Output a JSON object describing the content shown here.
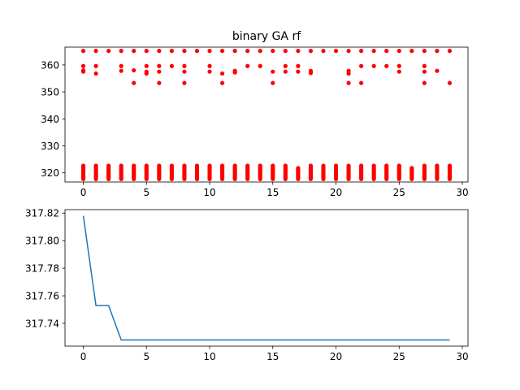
{
  "chart_data": [
    {
      "type": "scatter",
      "title": "binary GA rf",
      "xlabel": "",
      "ylabel": "",
      "xlim": [
        -1.45,
        30.45
      ],
      "ylim": [
        316.6,
        366.6
      ],
      "xticks": [
        0,
        5,
        10,
        15,
        20,
        25,
        30
      ],
      "yticks": [
        320,
        330,
        340,
        350,
        360
      ],
      "grid": false,
      "marker_color": "#ff0000",
      "x_range": [
        0,
        29
      ],
      "high_values": [
        365.2,
        359.6,
        358.0,
        357.5,
        356.8,
        353.3
      ],
      "low_range": [
        317.7,
        322.8
      ],
      "series": [
        {
          "x": [
            0,
            0,
            0,
            0,
            1,
            1,
            1,
            2,
            3,
            3,
            3,
            4,
            4,
            4,
            5,
            5,
            5,
            5,
            6,
            6,
            6,
            6,
            7,
            7,
            8,
            8,
            8,
            8,
            9,
            10,
            10,
            10,
            11,
            11,
            11,
            12,
            12,
            12,
            13,
            13,
            14,
            14,
            15,
            15,
            15,
            16,
            16,
            16,
            17,
            17,
            17,
            18,
            18,
            18,
            19,
            20,
            21,
            21,
            21,
            21,
            22,
            22,
            22,
            23,
            23,
            24,
            24,
            25,
            25,
            25,
            26,
            27,
            27,
            27,
            27,
            28,
            28,
            29,
            29
          ],
          "y": [
            365.2,
            359.6,
            358.0,
            357.5,
            365.2,
            359.6,
            356.8,
            365.2,
            365.2,
            359.6,
            357.8,
            365.2,
            358.0,
            353.3,
            365.2,
            359.6,
            357.5,
            356.8,
            365.2,
            359.6,
            357.5,
            353.3,
            365.2,
            359.6,
            365.2,
            359.6,
            357.5,
            353.3,
            365.2,
            365.2,
            359.6,
            357.5,
            365.2,
            356.8,
            353.3,
            365.2,
            357.8,
            357.2,
            365.2,
            359.6,
            365.2,
            359.6,
            365.2,
            357.5,
            353.3,
            365.2,
            359.6,
            357.5,
            365.2,
            359.6,
            357.5,
            365.2,
            357.8,
            357.0,
            365.2,
            365.2,
            365.2,
            357.8,
            356.8,
            353.3,
            365.2,
            359.6,
            353.3,
            365.2,
            359.6,
            365.2,
            359.6,
            365.2,
            359.6,
            357.5,
            365.2,
            365.2,
            359.6,
            357.5,
            353.3,
            365.2,
            357.8,
            365.2,
            353.3
          ]
        }
      ]
    },
    {
      "type": "line",
      "title": "",
      "xlabel": "",
      "ylabel": "",
      "xlim": [
        -1.45,
        30.45
      ],
      "ylim": [
        317.7235,
        317.8225
      ],
      "xticks": [
        0,
        5,
        10,
        15,
        20,
        25,
        30
      ],
      "yticks": [
        317.74,
        317.76,
        317.78,
        317.8,
        317.82
      ],
      "ytick_labels": [
        "317.74",
        "317.76",
        "317.78",
        "317.80",
        "317.82"
      ],
      "grid": false,
      "series": [
        {
          "color": "#1f77b4",
          "x": [
            0,
            1,
            2,
            3,
            4,
            5,
            6,
            7,
            8,
            9,
            10,
            11,
            12,
            13,
            14,
            15,
            16,
            17,
            18,
            19,
            20,
            21,
            22,
            23,
            24,
            25,
            26,
            27,
            28,
            29
          ],
          "y": [
            317.818,
            317.753,
            317.753,
            317.728,
            317.728,
            317.728,
            317.728,
            317.728,
            317.728,
            317.728,
            317.728,
            317.728,
            317.728,
            317.728,
            317.728,
            317.728,
            317.728,
            317.728,
            317.728,
            317.728,
            317.728,
            317.728,
            317.728,
            317.728,
            317.728,
            317.728,
            317.728,
            317.728,
            317.728,
            317.728
          ]
        }
      ]
    }
  ]
}
